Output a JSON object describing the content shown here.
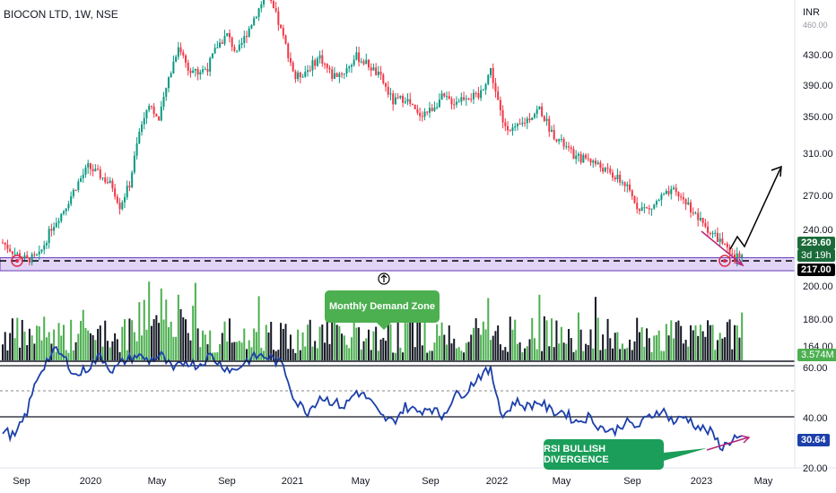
{
  "header": {
    "symbol": "BIOCON LTD, 1W, NSE",
    "currency": "INR"
  },
  "annotations": {
    "demand_zone": "Monthly Demand Zone",
    "rsi_divergence": "RSI BULLISH DIVERGENCE"
  },
  "price_tags": {
    "last_price": "229.60",
    "countdown": "3d 19h",
    "zone_level": "217.00",
    "volume": "3.574M",
    "rsi": "30.64"
  },
  "colors": {
    "up": "#089981",
    "down": "#f23645",
    "volume_up": "#4caf50",
    "volume_down": "#131722",
    "rsi_line": "#1c3faa",
    "zone_fill": "#e1d4f7",
    "zone_border": "#673ab7",
    "divergence": "#b3287a",
    "tag_price": "#1b6b3a"
  },
  "chart_data": {
    "type": "candlestick",
    "price_axis": {
      "ticks": [
        "430.00",
        "390.00",
        "350.00",
        "310.00",
        "270.00",
        "240.00",
        "200.00",
        "180.00",
        "164.00"
      ],
      "top_partial": "460.00"
    },
    "rsi_axis": {
      "ticks": [
        "60.00",
        "40.00",
        "20.00"
      ]
    },
    "time_axis": [
      "Sep",
      "2020",
      "May",
      "Sep",
      "2021",
      "May",
      "Sep",
      "2022",
      "May",
      "Sep",
      "2023",
      "May"
    ],
    "price_waypoints": [
      [
        0,
        238
      ],
      [
        5,
        228
      ],
      [
        10,
        222
      ],
      [
        15,
        226
      ],
      [
        20,
        252
      ],
      [
        25,
        268
      ],
      [
        30,
        290
      ],
      [
        35,
        308
      ],
      [
        40,
        300
      ],
      [
        45,
        290
      ],
      [
        48,
        272
      ],
      [
        52,
        292
      ],
      [
        56,
        340
      ],
      [
        60,
        368
      ],
      [
        64,
        350
      ],
      [
        68,
        390
      ],
      [
        72,
        420
      ],
      [
        76,
        400
      ],
      [
        80,
        395
      ],
      [
        84,
        400
      ],
      [
        88,
        420
      ],
      [
        92,
        430
      ],
      [
        96,
        412
      ],
      [
        100,
        432
      ],
      [
        104,
        450
      ],
      [
        108,
        468
      ],
      [
        112,
        448
      ],
      [
        116,
        420
      ],
      [
        120,
        390
      ],
      [
        125,
        398
      ],
      [
        130,
        410
      ],
      [
        135,
        392
      ],
      [
        140,
        396
      ],
      [
        145,
        410
      ],
      [
        150,
        402
      ],
      [
        155,
        390
      ],
      [
        160,
        368
      ],
      [
        165,
        372
      ],
      [
        170,
        356
      ],
      [
        175,
        360
      ],
      [
        180,
        372
      ],
      [
        185,
        368
      ],
      [
        190,
        374
      ],
      [
        195,
        372
      ],
      [
        200,
        398
      ],
      [
        205,
        348
      ],
      [
        210,
        342
      ],
      [
        215,
        352
      ],
      [
        220,
        362
      ],
      [
        225,
        340
      ],
      [
        230,
        328
      ],
      [
        235,
        316
      ],
      [
        240,
        316
      ],
      [
        245,
        308
      ],
      [
        250,
        300
      ],
      [
        255,
        292
      ],
      [
        260,
        272
      ],
      [
        265,
        268
      ],
      [
        270,
        280
      ],
      [
        275,
        285
      ],
      [
        280,
        276
      ],
      [
        285,
        260
      ],
      [
        290,
        248
      ],
      [
        295,
        238
      ],
      [
        298,
        226
      ],
      [
        300,
        222
      ],
      [
        303,
        230
      ]
    ],
    "rsi_waypoints": [
      [
        0,
        35
      ],
      [
        5,
        32
      ],
      [
        10,
        42
      ],
      [
        14,
        55
      ],
      [
        18,
        62
      ],
      [
        22,
        66
      ],
      [
        26,
        62
      ],
      [
        30,
        56
      ],
      [
        36,
        60
      ],
      [
        40,
        64
      ],
      [
        45,
        58
      ],
      [
        50,
        62
      ],
      [
        55,
        64
      ],
      [
        60,
        62
      ],
      [
        65,
        64
      ],
      [
        70,
        58
      ],
      [
        75,
        62
      ],
      [
        80,
        60
      ],
      [
        85,
        64
      ],
      [
        90,
        60
      ],
      [
        95,
        58
      ],
      [
        100,
        62
      ],
      [
        105,
        64
      ],
      [
        110,
        63
      ],
      [
        115,
        60
      ],
      [
        120,
        46
      ],
      [
        125,
        42
      ],
      [
        130,
        48
      ],
      [
        135,
        46
      ],
      [
        140,
        44
      ],
      [
        145,
        50
      ],
      [
        150,
        47
      ],
      [
        155,
        40
      ],
      [
        160,
        38
      ],
      [
        165,
        44
      ],
      [
        170,
        42
      ],
      [
        175,
        44
      ],
      [
        180,
        40
      ],
      [
        185,
        48
      ],
      [
        190,
        50
      ],
      [
        195,
        56
      ],
      [
        200,
        58
      ],
      [
        205,
        40
      ],
      [
        210,
        46
      ],
      [
        215,
        44
      ],
      [
        220,
        46
      ],
      [
        225,
        42
      ],
      [
        230,
        42
      ],
      [
        235,
        38
      ],
      [
        240,
        40
      ],
      [
        245,
        36
      ],
      [
        250,
        34
      ],
      [
        255,
        38
      ],
      [
        260,
        36
      ],
      [
        265,
        40
      ],
      [
        270,
        43
      ],
      [
        275,
        38
      ],
      [
        280,
        40
      ],
      [
        285,
        36
      ],
      [
        290,
        34
      ],
      [
        295,
        28
      ],
      [
        300,
        32
      ],
      [
        303,
        30.64
      ]
    ],
    "demand_zone": {
      "from": 212,
      "to": 224,
      "level": 217
    }
  }
}
